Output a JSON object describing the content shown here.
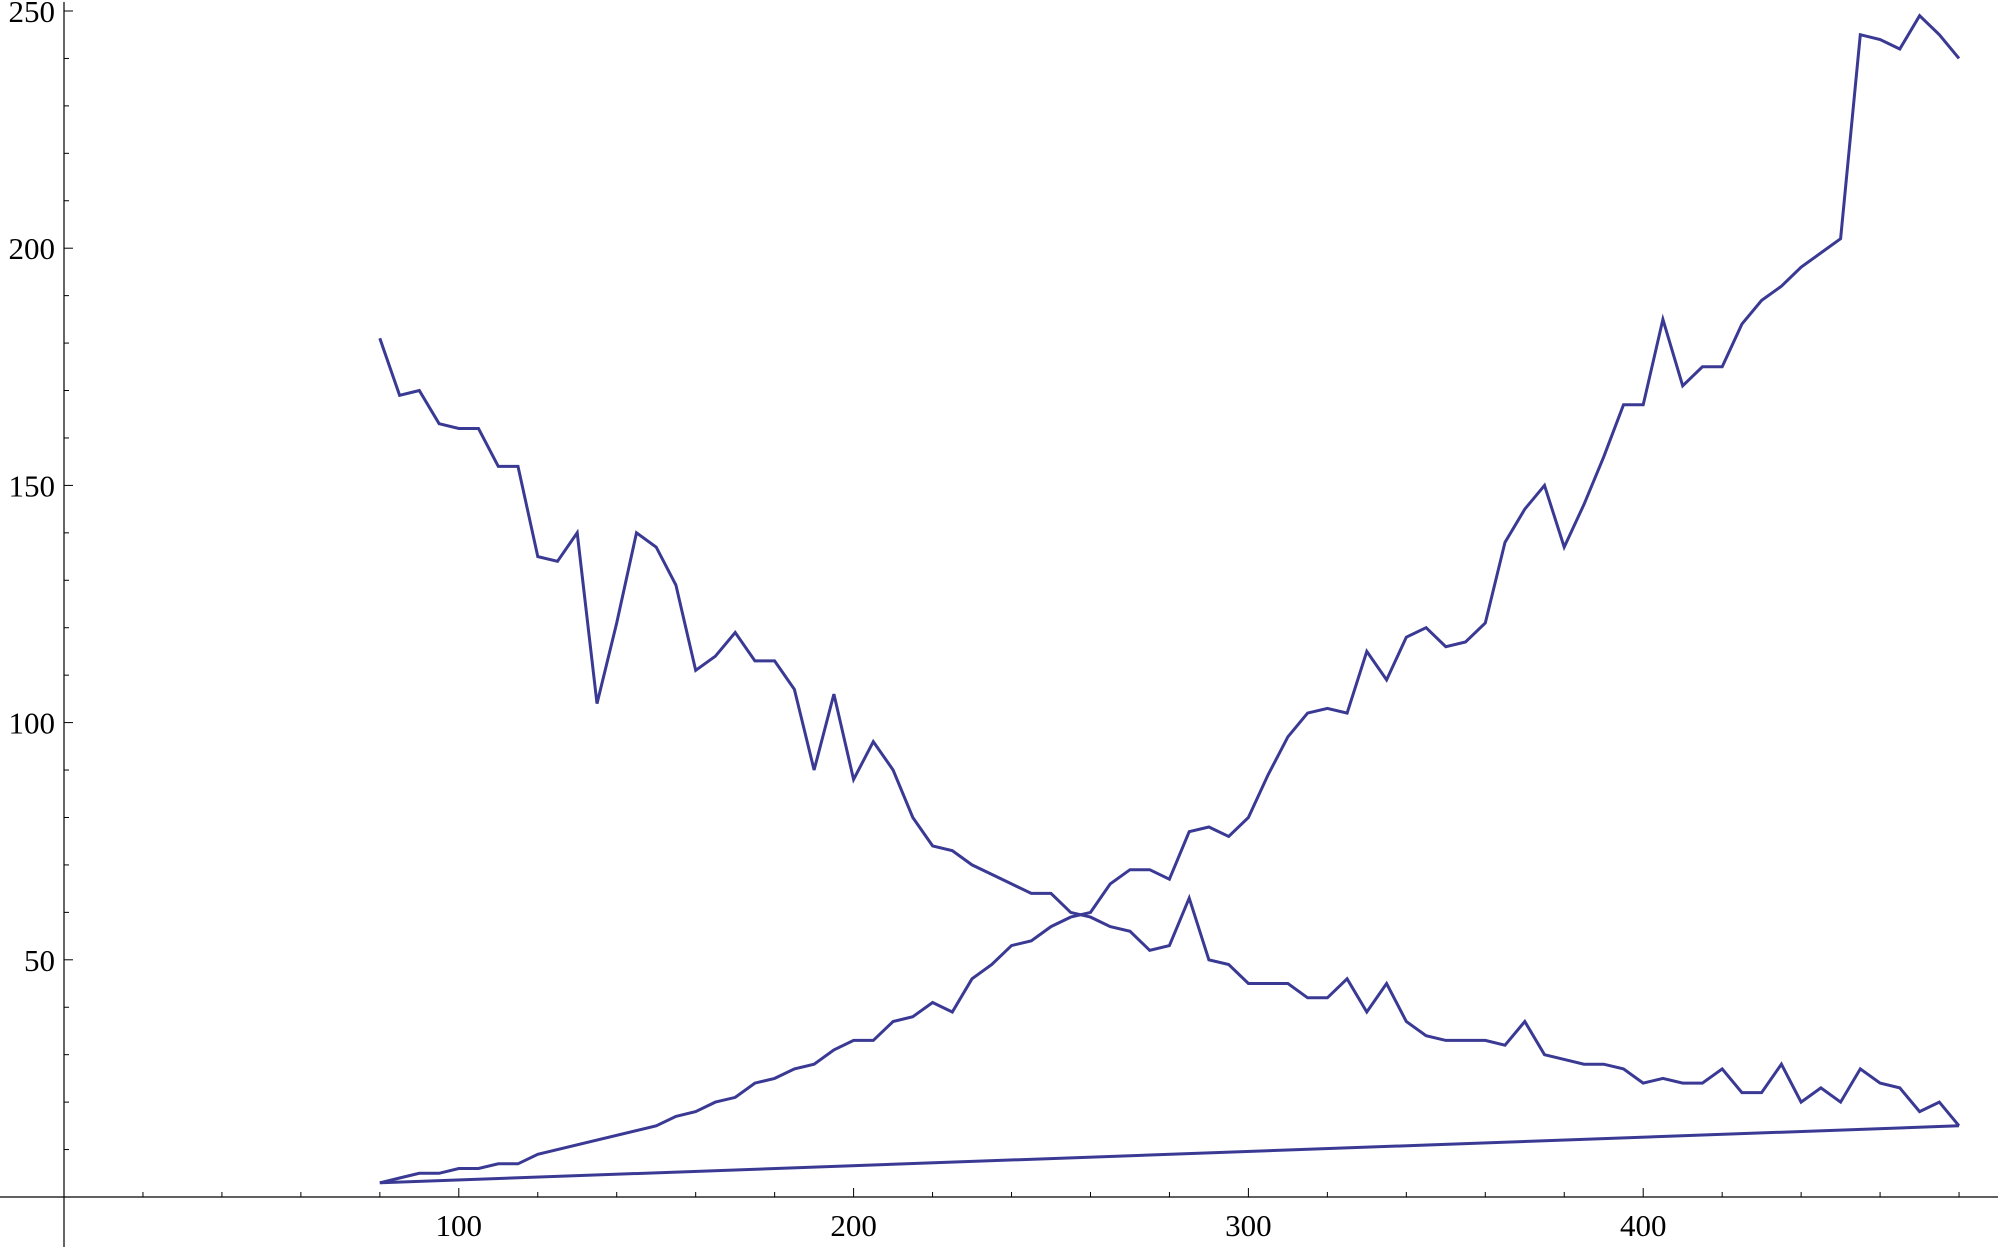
{
  "chart_data": {
    "type": "line",
    "title": "",
    "xlabel": "",
    "ylabel": "",
    "xlim": [
      0,
      485
    ],
    "ylim": [
      0,
      250
    ],
    "axes_origin": [
      0,
      0
    ],
    "grid": false,
    "legend": "none",
    "x_ticks_major": [
      100,
      200,
      300,
      400
    ],
    "x_tick_labels": [
      "100",
      "200",
      "300",
      "400"
    ],
    "y_ticks_major": [
      50,
      100,
      150,
      200,
      250
    ],
    "y_tick_labels": [
      "50",
      "100",
      "150",
      "200",
      "250"
    ],
    "colors": {
      "line": "#3a3a94",
      "axis": "#000000"
    },
    "series": [
      {
        "x": [
          80,
          85,
          90,
          95,
          100,
          105,
          110,
          115,
          120,
          125,
          130,
          135,
          140,
          145,
          150,
          155,
          160,
          165,
          170,
          175,
          180,
          185,
          190,
          195,
          200,
          205,
          210,
          215,
          220,
          225,
          230,
          235,
          240,
          245,
          250,
          255,
          260,
          265,
          270,
          275,
          280,
          285,
          290,
          295,
          300,
          305,
          310,
          315,
          320,
          325,
          330,
          335,
          340,
          345,
          350,
          355,
          360,
          365,
          370,
          375,
          380,
          385,
          390,
          395,
          400,
          405,
          410,
          415,
          420,
          425,
          430,
          435,
          440,
          445,
          450,
          455,
          460,
          465,
          470,
          475,
          480
        ],
        "values": [
          181,
          169,
          170,
          163,
          162,
          162,
          154,
          154,
          135,
          134,
          140,
          104,
          121,
          140,
          137,
          129,
          111,
          114,
          119,
          113,
          113,
          107,
          90,
          106,
          88,
          96,
          90,
          80,
          74,
          73,
          70,
          68,
          66,
          64,
          64,
          60,
          59,
          57,
          56,
          52,
          53,
          63,
          50,
          49,
          45,
          45,
          45,
          42,
          42,
          46,
          39,
          45,
          37,
          34,
          33,
          33,
          33,
          32,
          37,
          30,
          29,
          28,
          28,
          27,
          24,
          25,
          24,
          24,
          27,
          22,
          22,
          28,
          20,
          23,
          20,
          27,
          24,
          23,
          18,
          20,
          15
        ]
      },
      {
        "x": [
          80,
          85,
          90,
          95,
          100,
          105,
          110,
          115,
          120,
          150,
          155,
          160,
          165,
          170,
          175,
          180,
          185,
          190,
          195,
          200,
          205,
          210,
          215,
          220,
          225,
          230,
          235,
          240,
          245,
          250,
          255,
          260,
          265,
          270,
          275,
          280,
          285,
          290,
          295,
          300,
          305,
          310,
          315,
          320,
          325,
          330,
          335,
          340,
          345,
          350,
          355,
          360,
          365,
          370,
          375,
          380,
          385,
          390,
          395,
          400,
          405,
          410,
          415,
          420,
          425,
          430,
          435,
          440,
          445,
          450,
          455,
          460,
          465,
          470,
          475,
          480
        ],
        "values": [
          3,
          4,
          5,
          5,
          6,
          6,
          7,
          7,
          9,
          15,
          17,
          18,
          20,
          21,
          24,
          25,
          27,
          28,
          31,
          33,
          33,
          37,
          38,
          41,
          39,
          46,
          49,
          53,
          54,
          57,
          59,
          60,
          66,
          69,
          69,
          67,
          77,
          78,
          76,
          80,
          89,
          97,
          102,
          103,
          102,
          115,
          109,
          118,
          120,
          116,
          117,
          121,
          138,
          145,
          150,
          137,
          146,
          156,
          167,
          167,
          185,
          171,
          175,
          175,
          184,
          189,
          192,
          196,
          199,
          202,
          245,
          244,
          242,
          249,
          245,
          240
        ]
      },
      {
        "x": [
          80,
          480
        ],
        "values": [
          3,
          15
        ]
      }
    ]
  }
}
